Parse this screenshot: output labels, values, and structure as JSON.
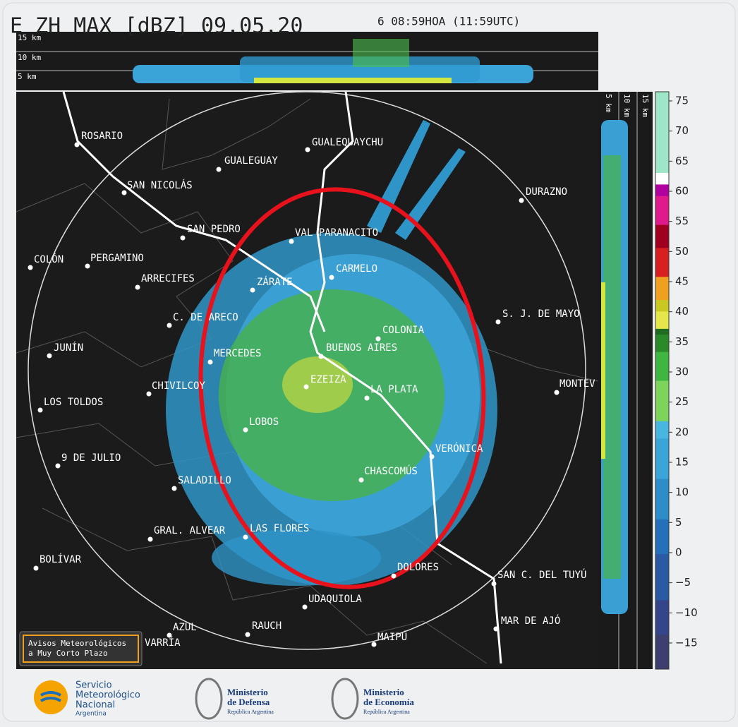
{
  "header": {
    "title": "E ZH MAX [dBZ] 09.05.20",
    "time": "6 08:59HOA (11:59UTC)"
  },
  "top_panel": {
    "heights": [
      "15 km",
      "10 km",
      "5 km"
    ]
  },
  "side_panel": {
    "heights": [
      "5 km",
      "10 km",
      "15 km"
    ]
  },
  "colorbar": {
    "ticks": [
      75,
      70,
      65,
      60,
      55,
      50,
      45,
      40,
      35,
      30,
      25,
      20,
      15,
      10,
      5,
      0,
      {
        "value": -5,
        "label": "−5"
      },
      {
        "value": -10,
        "label": "−10"
      },
      {
        "value": -15,
        "label": "−15"
      }
    ]
  },
  "cities": [
    "ROSARIO",
    "GUALEGUAY",
    "GUALEQUAYCHU",
    "SAN NICOLÁS",
    "DURAZNO",
    "SAN PEDRO",
    "VAL PARANACITO",
    "COLÓN",
    "PERGAMINO",
    "CARMELO",
    "ARRECIFES",
    "ZÁRATE",
    "S. J. DE MAYO",
    "C. DE ARECO",
    "COLONIA",
    "BUENOS AIRES",
    "JUNÍN",
    "MERCEDES",
    "EZEIZA",
    "CHIVILCOY",
    "LA PLATA",
    "MONTEV",
    "LOS TOLDOS",
    "LOBOS",
    "VERÓNICA",
    "9 DE JULIO",
    "CHASCOMÚS",
    "SALADILLO",
    "GRAL. ALVEAR",
    "LAS FLORES",
    "BOLÍVAR",
    "DOLORES",
    "SAN C. DEL TUYÚ",
    "UDAQUIOLA",
    "MAR DE AJÓ",
    "AZUL",
    "RAUCH",
    "MAIPÚ",
    "VARRÍA"
  ],
  "warning": [
    "Avisos Meteorológicos",
    "a Muy Corto Plazo"
  ],
  "footer": {
    "smn": [
      "Servicio",
      "Meteorológico",
      "Nacional",
      "Argentina"
    ],
    "defensa": [
      "Ministerio",
      "de Defensa",
      "República Argentina"
    ],
    "economia": [
      "Ministerio",
      "de Economía",
      "República Argentina"
    ]
  }
}
